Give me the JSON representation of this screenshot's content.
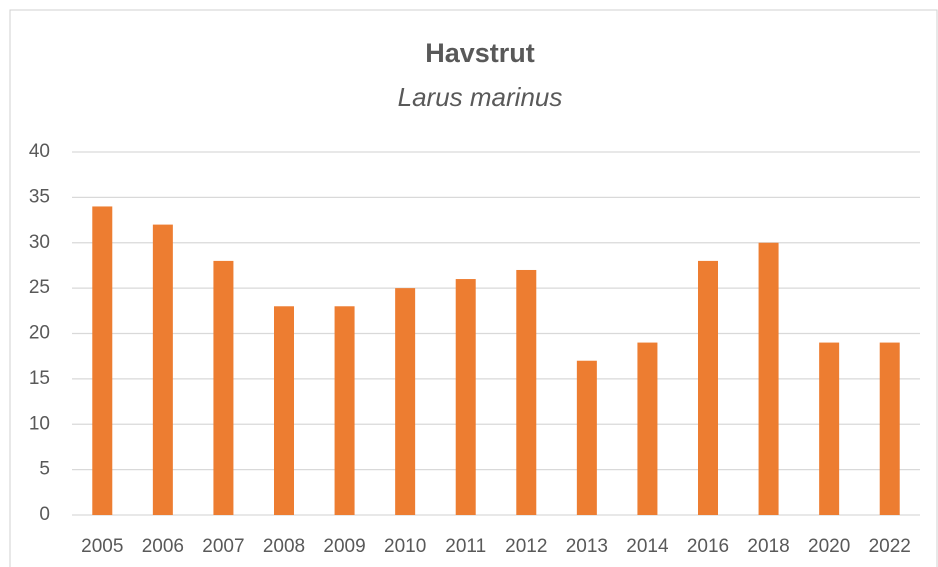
{
  "chart_data": {
    "type": "bar",
    "title": "Havstrut",
    "subtitle": "Larus marinus",
    "categories": [
      "2005",
      "2006",
      "2007",
      "2008",
      "2009",
      "2010",
      "2011",
      "2012",
      "2013",
      "2014",
      "2016",
      "2018",
      "2020",
      "2022"
    ],
    "values": [
      34,
      32,
      28,
      23,
      23,
      25,
      26,
      27,
      17,
      19,
      28,
      30,
      19,
      19
    ],
    "color": "#ed7d31",
    "ylim": [
      0,
      40
    ],
    "yticks": [
      0,
      5,
      10,
      15,
      20,
      25,
      30,
      35,
      40
    ],
    "grid": true
  }
}
